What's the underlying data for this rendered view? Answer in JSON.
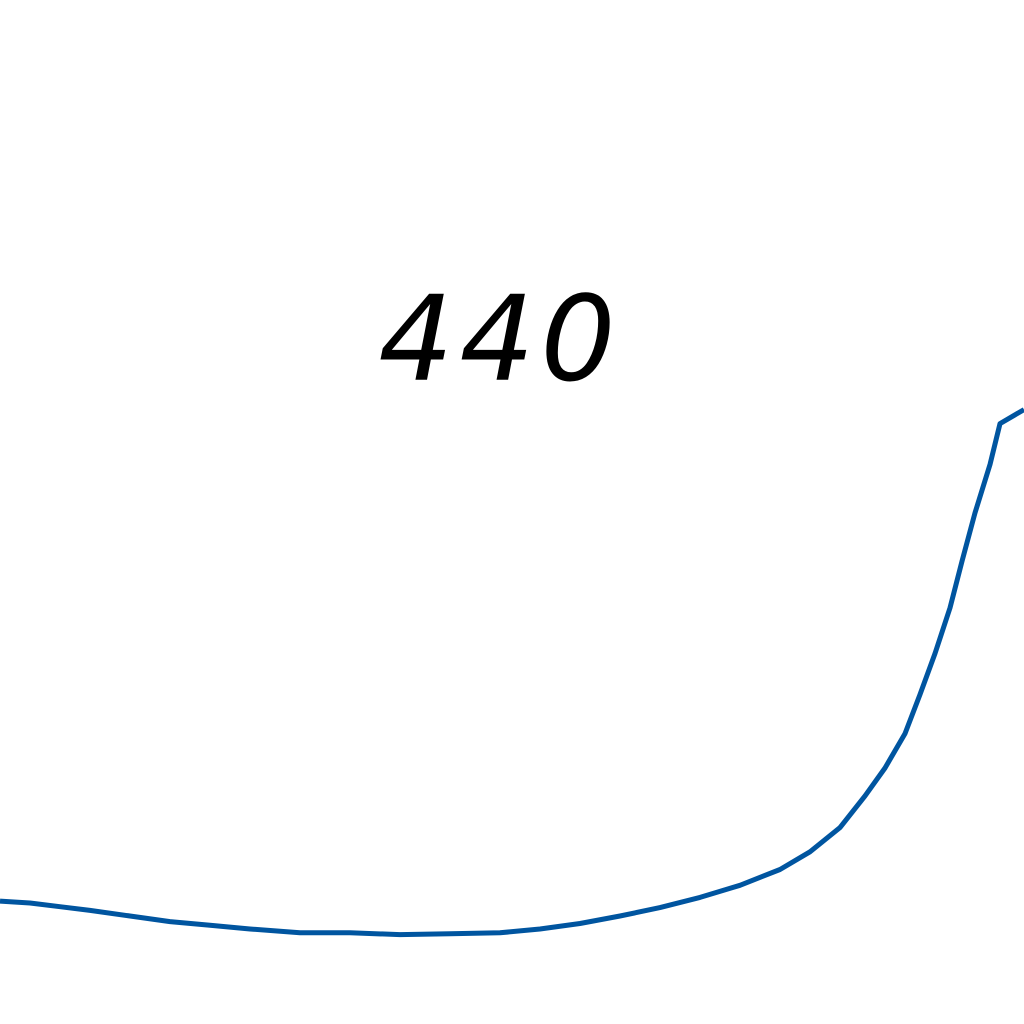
{
  "chart_data": {
    "type": "line",
    "title": "",
    "xlabel": "",
    "ylabel": "",
    "grid": false,
    "annotations": [
      {
        "text": "440"
      }
    ],
    "series": [
      {
        "color": "#0055a0",
        "x": [
          0,
          30,
          60,
          90,
          130,
          170,
          210,
          250,
          300,
          350,
          400,
          450,
          500,
          540,
          580,
          620,
          660,
          700,
          740,
          780,
          810,
          840,
          865,
          885,
          905,
          920,
          935,
          950,
          962,
          975,
          990,
          1000,
          1024
        ],
        "y": [
          0.032,
          0.03,
          0.026,
          0.022,
          0.016,
          0.01,
          0.006,
          0.002,
          -0.002,
          -0.002,
          -0.004,
          -0.003,
          -0.002,
          0.002,
          0.008,
          0.016,
          0.025,
          0.036,
          0.049,
          0.066,
          0.085,
          0.111,
          0.145,
          0.175,
          0.212,
          0.254,
          0.298,
          0.347,
          0.397,
          0.449,
          0.501,
          0.545,
          0.56
        ]
      }
    ]
  }
}
